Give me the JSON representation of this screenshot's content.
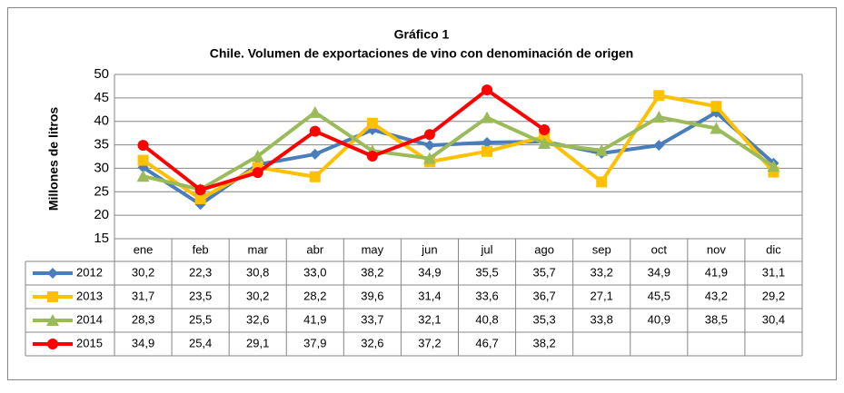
{
  "chart_data": {
    "type": "line",
    "title": "Gráfico 1",
    "subtitle": "Chile. Volumen de exportaciones de vino con denominación de origen",
    "y_label": "Millones de litros",
    "categories": [
      "ene",
      "feb",
      "mar",
      "abr",
      "may",
      "jun",
      "jul",
      "ago",
      "sep",
      "oct",
      "nov",
      "dic"
    ],
    "ylim": [
      15,
      50
    ],
    "yticks": [
      15,
      20,
      25,
      30,
      35,
      40,
      45,
      50
    ],
    "grid": true,
    "series": [
      {
        "name": "2012",
        "color": "#4a7ebb",
        "marker": "diamond",
        "values": [
          30.2,
          22.3,
          30.8,
          33.0,
          38.2,
          34.9,
          35.5,
          35.7,
          33.2,
          34.9,
          41.9,
          31.1
        ],
        "value_labels": [
          "30,2",
          "22,3",
          "30,8",
          "33,0",
          "38,2",
          "34,9",
          "35,5",
          "35,7",
          "33,2",
          "34,9",
          "41,9",
          "31,1"
        ]
      },
      {
        "name": "2013",
        "color": "#ffc000",
        "marker": "square",
        "values": [
          31.7,
          23.5,
          30.2,
          28.2,
          39.6,
          31.4,
          33.6,
          36.7,
          27.1,
          45.5,
          43.2,
          29.2
        ],
        "value_labels": [
          "31,7",
          "23,5",
          "30,2",
          "28,2",
          "39,6",
          "31,4",
          "33,6",
          "36,7",
          "27,1",
          "45,5",
          "43,2",
          "29,2"
        ]
      },
      {
        "name": "2014",
        "color": "#9bbb59",
        "marker": "triangle",
        "values": [
          28.3,
          25.5,
          32.6,
          41.9,
          33.7,
          32.1,
          40.8,
          35.3,
          33.8,
          40.9,
          38.5,
          30.4
        ],
        "value_labels": [
          "28,3",
          "25,5",
          "32,6",
          "41,9",
          "33,7",
          "32,1",
          "40,8",
          "35,3",
          "33,8",
          "40,9",
          "38,5",
          "30,4"
        ]
      },
      {
        "name": "2015",
        "color": "#ff0000",
        "marker": "circle",
        "values": [
          34.9,
          25.4,
          29.1,
          37.9,
          32.6,
          37.2,
          46.7,
          38.2,
          null,
          null,
          null,
          null
        ],
        "value_labels": [
          "34,9",
          "25,4",
          "29,1",
          "37,9",
          "32,6",
          "37,2",
          "46,7",
          "38,2",
          null,
          null,
          null,
          null
        ]
      }
    ]
  }
}
